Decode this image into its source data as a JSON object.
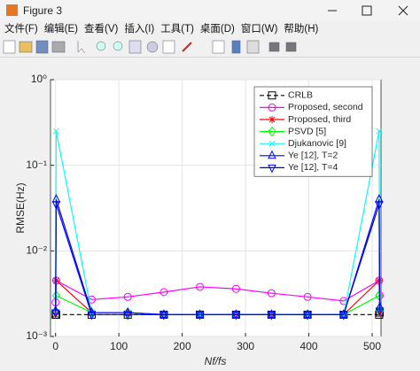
{
  "window": {
    "title": "Figure 3",
    "menu": [
      "文件(F)",
      "编辑(E)",
      "查看(V)",
      "插入(I)",
      "工具(T)",
      "桌面(D)",
      "窗口(W)",
      "帮助(H)"
    ]
  },
  "chart_data": {
    "type": "line",
    "xlabel": "Nf/fs",
    "ylabel": "RMSE(Hz)",
    "x": [
      0,
      1,
      57,
      114,
      171,
      228,
      285,
      341,
      398,
      455,
      511,
      512
    ],
    "xlim": [
      -8,
      514
    ],
    "xticks": [
      0,
      100,
      200,
      300,
      400,
      500
    ],
    "ylim": [
      0.001,
      1
    ],
    "yscale": "log",
    "yticks": [
      {
        "value": 0.001,
        "label": "10⁻³"
      },
      {
        "value": 0.01,
        "label": "10⁻²"
      },
      {
        "value": 0.1,
        "label": "10⁻¹"
      },
      {
        "value": 1,
        "label": "10⁰"
      }
    ],
    "grid": true,
    "legend_position": "upper-right",
    "series": [
      {
        "name": "CRLB",
        "color": "#000000",
        "marker": "square",
        "linestyle": "dashed",
        "values": [
          0.0018,
          0.0018,
          0.0018,
          0.0018,
          0.0018,
          0.0018,
          0.0018,
          0.0018,
          0.0018,
          0.0018,
          0.0018,
          0.0019
        ]
      },
      {
        "name": "Proposed, second",
        "color": "#ff00ff",
        "marker": "circle",
        "linestyle": "solid",
        "values": [
          0.0025,
          0.0045,
          0.0027,
          0.0029,
          0.0033,
          0.0038,
          0.0036,
          0.0032,
          0.0029,
          0.0026,
          0.0045,
          0.003
        ]
      },
      {
        "name": "Proposed, third",
        "color": "#ff0000",
        "marker": "asterisk",
        "linestyle": "solid",
        "values": [
          0.0018,
          0.0045,
          0.0019,
          0.0019,
          0.0018,
          0.0018,
          0.0018,
          0.0018,
          0.0018,
          0.0018,
          0.0045,
          0.0019
        ]
      },
      {
        "name": "PSVD [5]",
        "color": "#00ff00",
        "marker": "diamond",
        "linestyle": "solid",
        "values": [
          0.0019,
          0.003,
          0.0019,
          0.0019,
          0.0018,
          0.0018,
          0.0018,
          0.0018,
          0.0018,
          0.0018,
          0.003,
          0.002
        ]
      },
      {
        "name": "Djukanovic [9]",
        "color": "#00ffff",
        "marker": "x",
        "linestyle": "solid",
        "values": [
          0.0019,
          0.25,
          0.0019,
          0.0019,
          0.0018,
          0.0018,
          0.0018,
          0.0018,
          0.0018,
          0.0018,
          0.25,
          0.0021
        ]
      },
      {
        "name": "Ye [12], T=2",
        "color": "#0000ff",
        "marker": "triangle-up",
        "linestyle": "solid",
        "values": [
          0.002,
          0.04,
          0.0019,
          0.0019,
          0.0018,
          0.0018,
          0.0018,
          0.0018,
          0.0018,
          0.0018,
          0.04,
          0.0022
        ]
      },
      {
        "name": "Ye [12], T=4",
        "color": "#0000ff",
        "marker": "triangle-down",
        "linestyle": "solid",
        "values": [
          0.0019,
          0.035,
          0.0018,
          0.0018,
          0.0018,
          0.0018,
          0.0018,
          0.0018,
          0.0018,
          0.0018,
          0.035,
          0.002
        ]
      }
    ]
  }
}
